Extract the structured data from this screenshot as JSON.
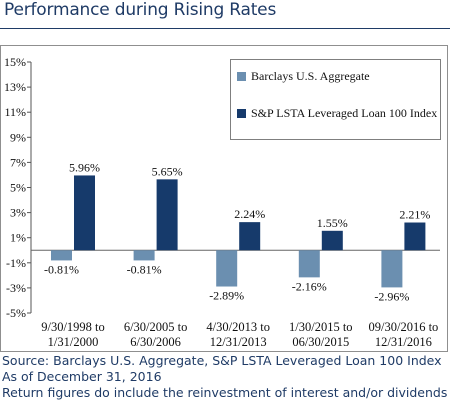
{
  "header": {
    "title": "Performance during Rising Rates"
  },
  "footer": {
    "source": "Source: Barclays U.S. Aggregate, S&P LSTA Leveraged Loan 100 Index",
    "as_of": "As of December 31, 2016",
    "note": "Return figures do include the reinvestment of interest and/or dividends"
  },
  "chart_data": {
    "type": "bar",
    "categories": [
      [
        "9/30/1998 to",
        "1/31/2000"
      ],
      [
        "6/30/2005 to",
        "6/30/2006"
      ],
      [
        "4/30/2013 to",
        "12/31/2013"
      ],
      [
        "1/30/2015 to",
        "06/30/2015"
      ],
      [
        "09/30/2016 to",
        "12/31/2016"
      ]
    ],
    "series": [
      {
        "name": "Barclays U.S. Aggregate",
        "color": "#6b8fb0",
        "values": [
          -0.81,
          -0.81,
          -2.89,
          -2.16,
          -2.96
        ],
        "labels": [
          "-0.81%",
          "-0.81%",
          "-2.89%",
          "-2.16%",
          "-2.96%"
        ]
      },
      {
        "name": "S&P LSTA Leveraged Loan 100 Index",
        "color": "#163a6b",
        "values": [
          5.96,
          5.65,
          2.24,
          1.55,
          2.21
        ],
        "labels": [
          "5.96%",
          "5.65%",
          "2.24%",
          "1.55%",
          "2.21%"
        ]
      }
    ],
    "ylim": [
      -5,
      15
    ],
    "yticks": [
      "15%",
      "13%",
      "11%",
      "9%",
      "7%",
      "5%",
      "3%",
      "1%",
      "-1%",
      "-3%",
      "-5%"
    ],
    "ytick_values": [
      15,
      13,
      11,
      9,
      7,
      5,
      3,
      1,
      -1,
      -3,
      -5
    ],
    "legend": "top-right",
    "grid": false
  }
}
